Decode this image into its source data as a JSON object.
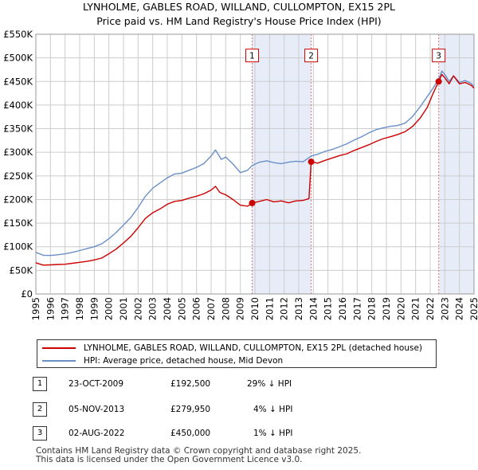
{
  "title_line1": "LYNHOLME, GABLES ROAD, WILLAND, CULLOMPTON, EX15 2PL",
  "title_line2": "Price paid vs. HM Land Registry's House Price Index (HPI)",
  "colors": {
    "red": "#cc0000",
    "blue": "#6a8fc8",
    "shade": "#e6ecf8",
    "grid": "#cccccc"
  },
  "chart_data": {
    "type": "line",
    "xlim": [
      1995,
      2025
    ],
    "ylim": [
      0,
      550000
    ],
    "y_ticks": [
      0,
      50000,
      100000,
      150000,
      200000,
      250000,
      300000,
      350000,
      400000,
      450000,
      500000,
      550000
    ],
    "y_tick_labels": [
      "£0",
      "£50K",
      "£100K",
      "£150K",
      "£200K",
      "£250K",
      "£300K",
      "£350K",
      "£400K",
      "£450K",
      "£500K",
      "£550K"
    ],
    "x_ticks": [
      1995,
      1996,
      1997,
      1998,
      1999,
      2000,
      2001,
      2002,
      2003,
      2004,
      2005,
      2006,
      2007,
      2008,
      2009,
      2010,
      2011,
      2012,
      2013,
      2014,
      2015,
      2016,
      2017,
      2018,
      2019,
      2020,
      2021,
      2022,
      2023,
      2024,
      2025
    ],
    "x_tick_labels": [
      "1995",
      "1996",
      "1997",
      "1998",
      "1999",
      "2000",
      "2001",
      "2002",
      "2003",
      "2004",
      "2005",
      "2006",
      "2007",
      "2008",
      "2009",
      "2010",
      "2011",
      "2012",
      "2013",
      "2014",
      "2015",
      "2016",
      "2017",
      "2018",
      "2019",
      "2020",
      "2021",
      "2022",
      "2023",
      "2024",
      "2025"
    ],
    "shaded_ranges": [
      [
        2009.81,
        2013.85
      ],
      [
        2022.58,
        2025
      ]
    ],
    "series": [
      {
        "name": "LYNHOLME, GABLES ROAD, WILLAND, CULLOMPTON, EX15 2PL (detached house)",
        "color": "#cc0000",
        "points": [
          [
            1995.0,
            66000
          ],
          [
            1995.5,
            61000
          ],
          [
            1996.0,
            61500
          ],
          [
            1996.5,
            62500
          ],
          [
            1997.0,
            63000
          ],
          [
            1997.5,
            65000
          ],
          [
            1998.0,
            67000
          ],
          [
            1998.5,
            69000
          ],
          [
            1999.0,
            72000
          ],
          [
            1999.5,
            76000
          ],
          [
            2000.0,
            85000
          ],
          [
            2000.5,
            95000
          ],
          [
            2001.0,
            108000
          ],
          [
            2001.5,
            122000
          ],
          [
            2002.0,
            140000
          ],
          [
            2002.5,
            160000
          ],
          [
            2003.0,
            172000
          ],
          [
            2003.5,
            180000
          ],
          [
            2004.0,
            190000
          ],
          [
            2004.5,
            196000
          ],
          [
            2005.0,
            198000
          ],
          [
            2005.5,
            203000
          ],
          [
            2006.0,
            207000
          ],
          [
            2006.5,
            212000
          ],
          [
            2007.0,
            220000
          ],
          [
            2007.3,
            228000
          ],
          [
            2007.6,
            215000
          ],
          [
            2008.0,
            210000
          ],
          [
            2008.5,
            200000
          ],
          [
            2009.0,
            188000
          ],
          [
            2009.5,
            186000
          ],
          [
            2009.81,
            192500
          ],
          [
            2010.3,
            196000
          ],
          [
            2010.8,
            200000
          ],
          [
            2011.3,
            195000
          ],
          [
            2011.8,
            197000
          ],
          [
            2012.3,
            193000
          ],
          [
            2012.8,
            197000
          ],
          [
            2013.3,
            198000
          ],
          [
            2013.7,
            202000
          ],
          [
            2013.85,
            279950
          ],
          [
            2014.3,
            277000
          ],
          [
            2014.8,
            283000
          ],
          [
            2015.3,
            288000
          ],
          [
            2015.8,
            293000
          ],
          [
            2016.3,
            297000
          ],
          [
            2016.8,
            304000
          ],
          [
            2017.3,
            310000
          ],
          [
            2017.8,
            316000
          ],
          [
            2018.3,
            323000
          ],
          [
            2018.8,
            329000
          ],
          [
            2019.3,
            333000
          ],
          [
            2019.8,
            338000
          ],
          [
            2020.3,
            344000
          ],
          [
            2020.8,
            355000
          ],
          [
            2021.3,
            372000
          ],
          [
            2021.8,
            395000
          ],
          [
            2022.2,
            425000
          ],
          [
            2022.58,
            450000
          ],
          [
            2022.8,
            465000
          ],
          [
            2023.0,
            458000
          ],
          [
            2023.3,
            445000
          ],
          [
            2023.6,
            462000
          ],
          [
            2024.0,
            445000
          ],
          [
            2024.4,
            448000
          ],
          [
            2024.8,
            442000
          ],
          [
            2025.0,
            436000
          ]
        ]
      },
      {
        "name": "HPI: Average price, detached house, Mid Devon",
        "color": "#6a8fc8",
        "points": [
          [
            1995.0,
            88000
          ],
          [
            1995.5,
            82000
          ],
          [
            1996.0,
            81500
          ],
          [
            1996.5,
            83000
          ],
          [
            1997.0,
            85000
          ],
          [
            1997.5,
            88000
          ],
          [
            1998.0,
            92000
          ],
          [
            1998.5,
            96000
          ],
          [
            1999.0,
            100000
          ],
          [
            1999.5,
            106000
          ],
          [
            2000.0,
            117000
          ],
          [
            2000.5,
            130000
          ],
          [
            2001.0,
            146000
          ],
          [
            2001.5,
            162000
          ],
          [
            2002.0,
            183000
          ],
          [
            2002.5,
            207000
          ],
          [
            2003.0,
            224000
          ],
          [
            2003.5,
            235000
          ],
          [
            2004.0,
            246000
          ],
          [
            2004.5,
            254000
          ],
          [
            2005.0,
            256000
          ],
          [
            2005.5,
            262000
          ],
          [
            2006.0,
            268000
          ],
          [
            2006.5,
            276000
          ],
          [
            2007.0,
            292000
          ],
          [
            2007.3,
            305000
          ],
          [
            2007.7,
            285000
          ],
          [
            2008.0,
            290000
          ],
          [
            2008.5,
            275000
          ],
          [
            2009.0,
            257000
          ],
          [
            2009.5,
            262000
          ],
          [
            2009.81,
            272000
          ],
          [
            2010.3,
            279000
          ],
          [
            2010.8,
            282000
          ],
          [
            2011.3,
            278000
          ],
          [
            2011.8,
            276000
          ],
          [
            2012.3,
            279000
          ],
          [
            2012.8,
            281000
          ],
          [
            2013.3,
            280000
          ],
          [
            2013.85,
            292000
          ],
          [
            2014.3,
            296000
          ],
          [
            2014.8,
            302000
          ],
          [
            2015.3,
            306000
          ],
          [
            2015.8,
            312000
          ],
          [
            2016.3,
            318000
          ],
          [
            2016.8,
            326000
          ],
          [
            2017.3,
            333000
          ],
          [
            2017.8,
            341000
          ],
          [
            2018.3,
            348000
          ],
          [
            2018.8,
            352000
          ],
          [
            2019.3,
            355000
          ],
          [
            2019.8,
            357000
          ],
          [
            2020.3,
            362000
          ],
          [
            2020.8,
            376000
          ],
          [
            2021.3,
            396000
          ],
          [
            2021.8,
            418000
          ],
          [
            2022.2,
            436000
          ],
          [
            2022.58,
            455000
          ],
          [
            2022.8,
            472000
          ],
          [
            2023.0,
            465000
          ],
          [
            2023.3,
            450000
          ],
          [
            2023.6,
            462000
          ],
          [
            2024.0,
            448000
          ],
          [
            2024.4,
            452000
          ],
          [
            2024.8,
            446000
          ],
          [
            2025.0,
            440000
          ]
        ]
      }
    ],
    "markers": [
      {
        "label": "1",
        "x": 2009.81,
        "y": 192500,
        "box_y": 505000
      },
      {
        "label": "2",
        "x": 2013.85,
        "y": 279950,
        "box_y": 505000
      },
      {
        "label": "3",
        "x": 2022.58,
        "y": 450000,
        "box_y": 505000
      }
    ]
  },
  "legend": {
    "red_label": "LYNHOLME, GABLES ROAD, WILLAND, CULLOMPTON, EX15 2PL (detached house)",
    "blue_label": "HPI: Average price, detached house, Mid Devon"
  },
  "sales": [
    {
      "num": "1",
      "date": "23-OCT-2009",
      "price": "£192,500",
      "hpi": "29% ↓ HPI"
    },
    {
      "num": "2",
      "date": "05-NOV-2013",
      "price": "£279,950",
      "hpi": "4% ↓ HPI"
    },
    {
      "num": "3",
      "date": "02-AUG-2022",
      "price": "£450,000",
      "hpi": "1% ↓ HPI"
    }
  ],
  "footer_line1": "Contains HM Land Registry data © Crown copyright and database right 2025.",
  "footer_line2": "This data is licensed under the Open Government Licence v3.0."
}
